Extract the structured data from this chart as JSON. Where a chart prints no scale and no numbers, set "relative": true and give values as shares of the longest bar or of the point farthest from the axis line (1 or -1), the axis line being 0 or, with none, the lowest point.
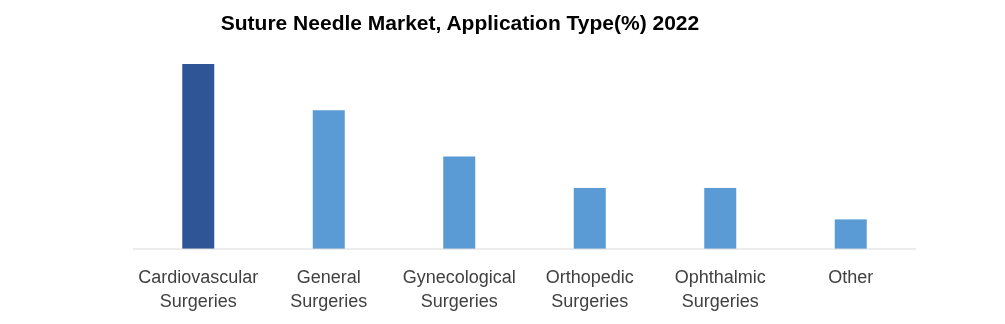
{
  "chart_data": {
    "type": "bar",
    "title": "Suture Needle Market, Application Type(%) 2022",
    "relative": true,
    "categories": [
      "Cardiovascular Surgeries",
      "General Surgeries",
      "Gynecological Surgeries",
      "Orthopedic Surgeries",
      "Ophthalmic Surgeries",
      "Other"
    ],
    "values": [
      1,
      0.75,
      0.5,
      0.33,
      0.33,
      0.16
    ],
    "colors": [
      "#2f5597",
      "#5b9bd5",
      "#5b9bd5",
      "#5b9bd5",
      "#5b9bd5",
      "#5b9bd5"
    ]
  }
}
